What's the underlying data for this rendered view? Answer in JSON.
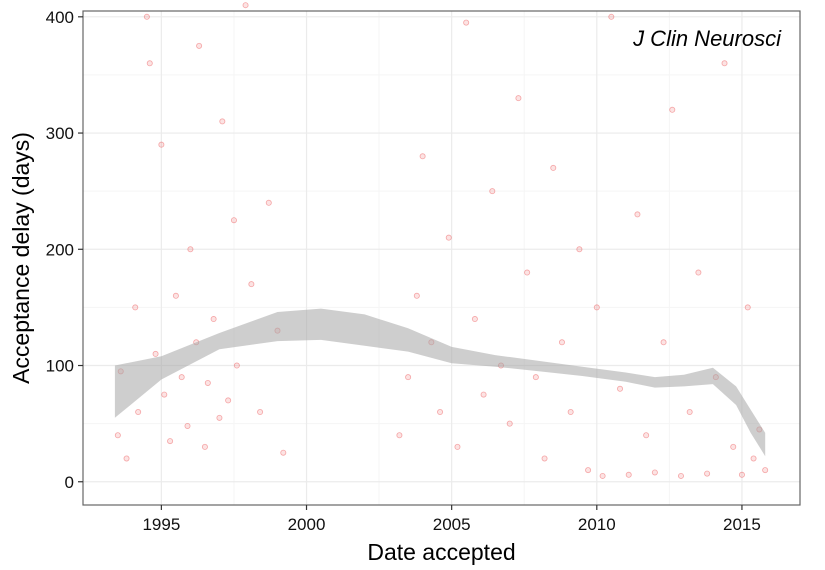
{
  "chart_data": {
    "type": "scatter",
    "xlabel": "Date accepted",
    "ylabel": "Acceptance delay (days)",
    "annotation": "J Clin Neurosci",
    "xlim": [
      1992.3,
      2017.0
    ],
    "ylim": [
      -20,
      405
    ],
    "x_ticks": [
      1995,
      2000,
      2005,
      2010,
      2015
    ],
    "y_ticks": [
      0,
      100,
      200,
      300,
      400
    ],
    "grid": true,
    "legend": "none",
    "colors": {
      "points": "#e41a1c",
      "smooth_band": "#a6a6a6",
      "grid_major": "#ebebeb",
      "grid_minor": "#f5f5f5",
      "panel_border": "#666666"
    },
    "points": [
      [
        1993.5,
        40
      ],
      [
        1993.6,
        95
      ],
      [
        1993.8,
        20
      ],
      [
        1994.1,
        150
      ],
      [
        1994.2,
        60
      ],
      [
        1994.5,
        400
      ],
      [
        1994.6,
        360
      ],
      [
        1994.8,
        110
      ],
      [
        1995.0,
        290
      ],
      [
        1995.1,
        75
      ],
      [
        1995.3,
        35
      ],
      [
        1995.5,
        160
      ],
      [
        1995.7,
        90
      ],
      [
        1995.9,
        48
      ],
      [
        1996.0,
        200
      ],
      [
        1996.2,
        120
      ],
      [
        1996.3,
        375
      ],
      [
        1996.5,
        30
      ],
      [
        1996.6,
        85
      ],
      [
        1996.8,
        140
      ],
      [
        1997.0,
        55
      ],
      [
        1997.1,
        310
      ],
      [
        1997.3,
        70
      ],
      [
        1997.5,
        225
      ],
      [
        1997.6,
        100
      ],
      [
        1997.9,
        410
      ],
      [
        1998.1,
        170
      ],
      [
        1998.4,
        60
      ],
      [
        1998.7,
        240
      ],
      [
        1999.0,
        130
      ],
      [
        1999.2,
        25
      ],
      [
        2003.2,
        40
      ],
      [
        2003.5,
        90
      ],
      [
        2003.8,
        160
      ],
      [
        2004.0,
        280
      ],
      [
        2004.3,
        120
      ],
      [
        2004.6,
        60
      ],
      [
        2004.9,
        210
      ],
      [
        2005.2,
        30
      ],
      [
        2005.5,
        395
      ],
      [
        2005.8,
        140
      ],
      [
        2006.1,
        75
      ],
      [
        2006.4,
        250
      ],
      [
        2006.7,
        100
      ],
      [
        2007.0,
        50
      ],
      [
        2007.3,
        330
      ],
      [
        2007.6,
        180
      ],
      [
        2007.9,
        90
      ],
      [
        2008.2,
        20
      ],
      [
        2008.5,
        270
      ],
      [
        2008.8,
        120
      ],
      [
        2009.1,
        60
      ],
      [
        2009.4,
        200
      ],
      [
        2009.7,
        10
      ],
      [
        2010.0,
        150
      ],
      [
        2010.2,
        5
      ],
      [
        2010.5,
        400
      ],
      [
        2010.8,
        80
      ],
      [
        2011.1,
        6
      ],
      [
        2011.4,
        230
      ],
      [
        2011.7,
        40
      ],
      [
        2012.0,
        8
      ],
      [
        2012.3,
        120
      ],
      [
        2012.6,
        320
      ],
      [
        2012.9,
        5
      ],
      [
        2013.2,
        60
      ],
      [
        2013.5,
        180
      ],
      [
        2013.8,
        7
      ],
      [
        2014.1,
        90
      ],
      [
        2014.4,
        360
      ],
      [
        2014.7,
        30
      ],
      [
        2015.0,
        6
      ],
      [
        2015.2,
        150
      ],
      [
        2015.4,
        20
      ],
      [
        2015.6,
        45
      ],
      [
        2015.8,
        10
      ]
    ],
    "smooth_band": [
      {
        "x": 1993.4,
        "lower": 55,
        "upper": 100
      },
      {
        "x": 1995.0,
        "lower": 88,
        "upper": 108
      },
      {
        "x": 1997.0,
        "lower": 114,
        "upper": 128
      },
      {
        "x": 1999.0,
        "lower": 121,
        "upper": 146
      },
      {
        "x": 2000.5,
        "lower": 122,
        "upper": 149
      },
      {
        "x": 2002.0,
        "lower": 117,
        "upper": 144
      },
      {
        "x": 2003.5,
        "lower": 112,
        "upper": 132
      },
      {
        "x": 2005.0,
        "lower": 102,
        "upper": 116
      },
      {
        "x": 2006.5,
        "lower": 99,
        "upper": 109
      },
      {
        "x": 2008.0,
        "lower": 95,
        "upper": 104
      },
      {
        "x": 2009.5,
        "lower": 91,
        "upper": 99
      },
      {
        "x": 2011.0,
        "lower": 86,
        "upper": 94
      },
      {
        "x": 2012.0,
        "lower": 81,
        "upper": 90
      },
      {
        "x": 2013.0,
        "lower": 82,
        "upper": 92
      },
      {
        "x": 2014.0,
        "lower": 84,
        "upper": 98
      },
      {
        "x": 2014.8,
        "lower": 66,
        "upper": 82
      },
      {
        "x": 2015.3,
        "lower": 42,
        "upper": 62
      },
      {
        "x": 2015.8,
        "lower": 22,
        "upper": 42
      }
    ]
  }
}
